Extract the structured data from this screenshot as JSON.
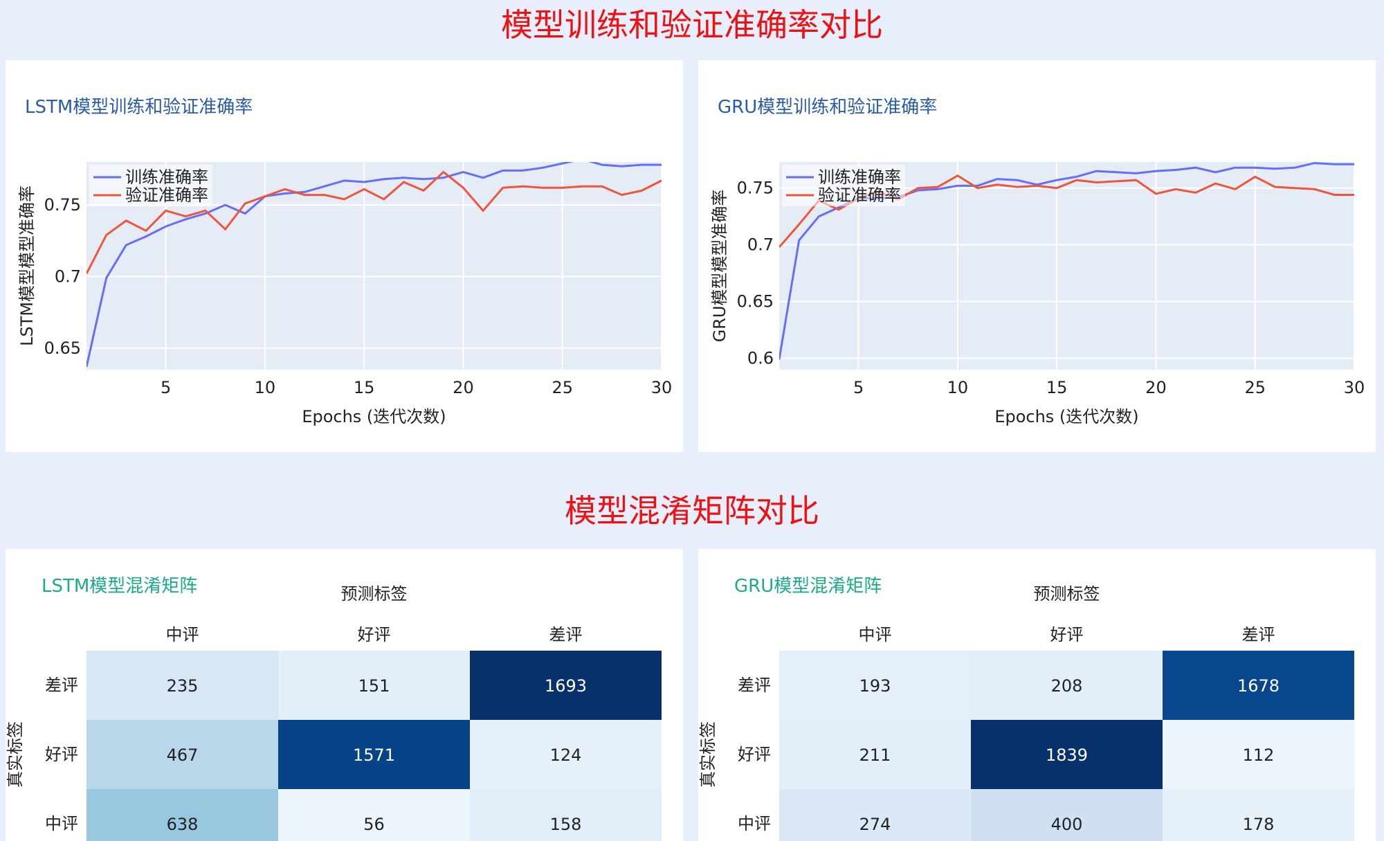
{
  "titles": {
    "accuracy_section": "模型训练和验证准确率对比",
    "confusion_section": "模型混淆矩阵对比"
  },
  "colors": {
    "train": "#636efa",
    "val": "#ef553b",
    "line_title": "#2a5ca8",
    "cm_title": "#1aab8a",
    "section_title": "#ee1111",
    "plot_bg": "#e5ecf6"
  },
  "chart_data": [
    {
      "type": "line",
      "title": "LSTM模型训练和验证准确率",
      "xlabel": "Epochs (迭代次数)",
      "ylabel": "LSTM模型模型准确率",
      "xlim": [
        1,
        30
      ],
      "ylim": [
        0.635,
        0.78
      ],
      "xticks": [
        5,
        10,
        15,
        20,
        25,
        30
      ],
      "yticks": [
        0.65,
        0.7,
        0.75
      ],
      "ytick_labels": [
        "0.65",
        "0.7",
        "0.75"
      ],
      "grid": true,
      "legend_position": "top-left",
      "x": [
        1,
        2,
        3,
        4,
        5,
        6,
        7,
        8,
        9,
        10,
        11,
        12,
        13,
        14,
        15,
        16,
        17,
        18,
        19,
        20,
        21,
        22,
        23,
        24,
        25,
        26,
        27,
        28,
        29,
        30
      ],
      "series": [
        {
          "name": "训练准确率",
          "values": [
            0.637,
            0.699,
            0.722,
            0.728,
            0.735,
            0.74,
            0.744,
            0.75,
            0.744,
            0.756,
            0.758,
            0.759,
            0.763,
            0.767,
            0.766,
            0.768,
            0.769,
            0.768,
            0.769,
            0.773,
            0.769,
            0.774,
            0.774,
            0.776,
            0.779,
            0.782,
            0.778,
            0.777,
            0.778,
            0.778
          ]
        },
        {
          "name": "验证准确率",
          "values": [
            0.702,
            0.729,
            0.739,
            0.732,
            0.746,
            0.742,
            0.746,
            0.733,
            0.751,
            0.756,
            0.761,
            0.757,
            0.757,
            0.754,
            0.761,
            0.754,
            0.766,
            0.76,
            0.773,
            0.762,
            0.746,
            0.762,
            0.763,
            0.762,
            0.762,
            0.763,
            0.763,
            0.757,
            0.76,
            0.767
          ]
        }
      ]
    },
    {
      "type": "line",
      "title": "GRU模型训练和验证准确率",
      "xlabel": "Epochs (迭代次数)",
      "ylabel": "GRU模型模型准确率",
      "xlim": [
        1,
        30
      ],
      "ylim": [
        0.59,
        0.773
      ],
      "xticks": [
        5,
        10,
        15,
        20,
        25,
        30
      ],
      "yticks": [
        0.6,
        0.65,
        0.7,
        0.75
      ],
      "ytick_labels": [
        "0.6",
        "0.65",
        "0.7",
        "0.75"
      ],
      "grid": true,
      "legend_position": "top-left",
      "x": [
        1,
        2,
        3,
        4,
        5,
        6,
        7,
        8,
        9,
        10,
        11,
        12,
        13,
        14,
        15,
        16,
        17,
        18,
        19,
        20,
        21,
        22,
        23,
        24,
        25,
        26,
        27,
        28,
        29,
        30
      ],
      "series": [
        {
          "name": "训练准确率",
          "values": [
            0.599,
            0.704,
            0.725,
            0.733,
            0.741,
            0.741,
            0.742,
            0.748,
            0.749,
            0.752,
            0.752,
            0.758,
            0.757,
            0.753,
            0.757,
            0.76,
            0.765,
            0.764,
            0.763,
            0.765,
            0.766,
            0.768,
            0.764,
            0.768,
            0.768,
            0.767,
            0.768,
            0.772,
            0.771,
            0.771
          ]
        },
        {
          "name": "验证准确率",
          "values": [
            0.698,
            0.718,
            0.739,
            0.731,
            0.741,
            0.747,
            0.74,
            0.75,
            0.751,
            0.761,
            0.75,
            0.753,
            0.751,
            0.752,
            0.75,
            0.757,
            0.755,
            0.756,
            0.757,
            0.745,
            0.749,
            0.746,
            0.754,
            0.749,
            0.76,
            0.751,
            0.75,
            0.749,
            0.744,
            0.744
          ]
        }
      ]
    },
    {
      "type": "heatmap",
      "title": "LSTM模型混淆矩阵",
      "xlabel": "预测标签",
      "ylabel": "真实标签",
      "x_categories": [
        "中评",
        "好评",
        "差评"
      ],
      "y_categories": [
        "差评",
        "好评",
        "中评"
      ],
      "values": [
        [
          235,
          151,
          1693
        ],
        [
          467,
          1571,
          124
        ],
        [
          638,
          56,
          158
        ]
      ],
      "colorscale": "Blues"
    },
    {
      "type": "heatmap",
      "title": "GRU模型混淆矩阵",
      "xlabel": "预测标签",
      "ylabel": "真实标签",
      "x_categories": [
        "中评",
        "好评",
        "差评"
      ],
      "y_categories": [
        "差评",
        "好评",
        "中评"
      ],
      "values": [
        [
          193,
          208,
          1678
        ],
        [
          211,
          1839,
          112
        ],
        [
          274,
          400,
          178
        ]
      ],
      "colorscale": "Blues"
    }
  ]
}
